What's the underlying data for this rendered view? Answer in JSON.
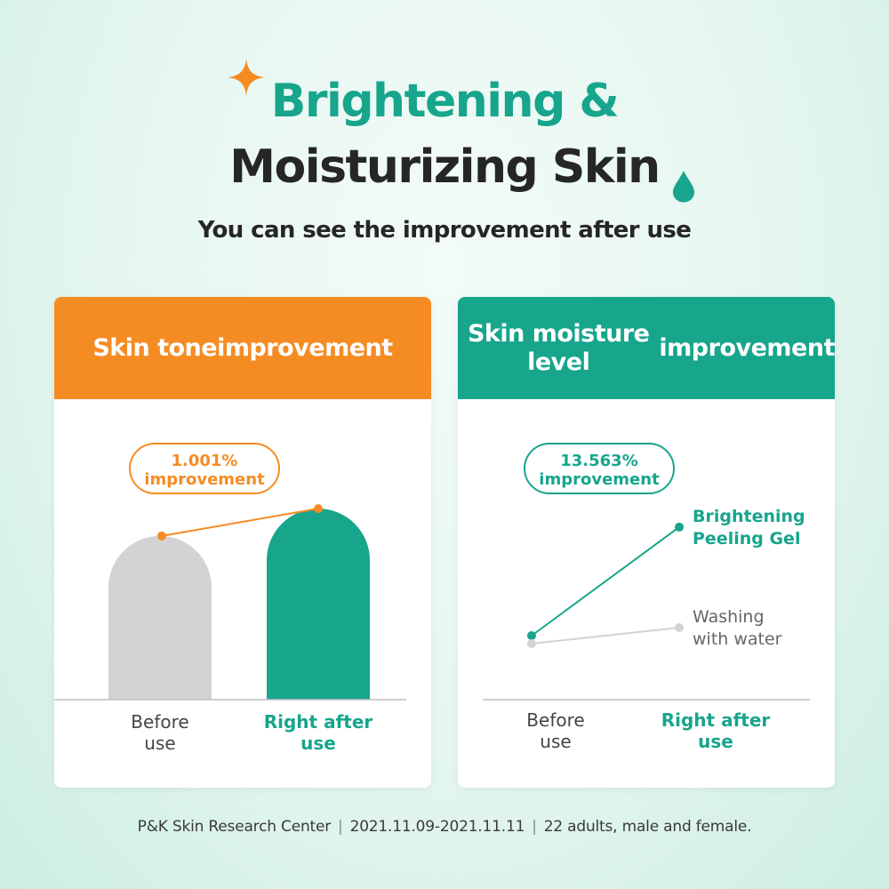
{
  "header": {
    "title_line1": "Brightening &",
    "title_line2": "Moisturizing Skin",
    "subtitle": "You can see the improvement after use"
  },
  "colors": {
    "orange": "#f58c23",
    "teal": "#17a58c",
    "gray": "#d3d3d3",
    "dark": "#262626"
  },
  "icons": {
    "sparkle": "sparkle-icon",
    "drop": "water-drop-icon"
  },
  "chart_data": [
    {
      "type": "bar",
      "title_lines": [
        "Skin tone",
        "improvement"
      ],
      "categories": [
        {
          "lines": [
            "Before",
            "use"
          ]
        },
        {
          "lines": [
            "Right after",
            "use"
          ]
        }
      ],
      "badge_lines": [
        "1.001%",
        "improvement"
      ],
      "values": [
        1.0,
        1.01001
      ],
      "ylim": [
        0.94,
        1.012
      ],
      "grid": false,
      "legend": "none"
    },
    {
      "type": "line",
      "title_lines": [
        "Skin moisture level",
        "improvement"
      ],
      "categories": [
        {
          "lines": [
            "Before",
            "use"
          ]
        },
        {
          "lines": [
            "Right after",
            "use"
          ]
        }
      ],
      "badge_lines": [
        "13.563%",
        "improvement"
      ],
      "series": [
        {
          "name_lines": [
            "Brightening",
            "Peeling Gel"
          ],
          "values": [
            1.0,
            1.13563
          ]
        },
        {
          "name_lines": [
            "Washing",
            "with water"
          ],
          "values": [
            0.99,
            1.01
          ]
        }
      ],
      "ylim": [
        0.96,
        1.14
      ],
      "grid": false,
      "legend": "inline-right"
    }
  ],
  "footer": {
    "source": "P&K Skin Research Center",
    "period": "2021.11.09-2021.11.11",
    "subjects": "22 adults, male and female."
  }
}
